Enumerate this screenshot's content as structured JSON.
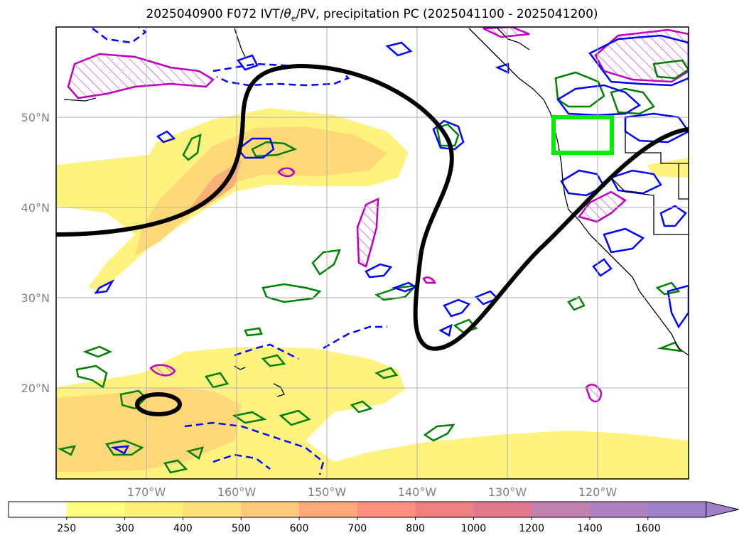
{
  "title": {
    "prefix": "2025040900 F072 IVT/",
    "theta": "θ",
    "theta_sub": "e",
    "suffix": "/PV, precipitation PC (2025041100 - 2025041200)"
  },
  "map": {
    "lat_labels": [
      "50°N",
      "40°N",
      "30°N",
      "20°N"
    ],
    "lon_labels": [
      "170°W",
      "160°W",
      "150°W",
      "140°W",
      "130°W",
      "120°W"
    ],
    "grid": true
  },
  "colorbar": {
    "ticks": [
      "250",
      "300",
      "400",
      "500",
      "600",
      "700",
      "800",
      "1000",
      "1200",
      "1400",
      "1600"
    ],
    "colors": [
      "#ffffff",
      "#ffff80",
      "#fff07a",
      "#ffe07a",
      "#ffc87a",
      "#ffa87a",
      "#ff9080",
      "#f08080",
      "#e07890",
      "#c080b0",
      "#b080c0",
      "#a080c8"
    ],
    "extend": "max"
  },
  "colors": {
    "ivt_low": "#fff380",
    "ivt_mid": "#ffd878",
    "ivt_high": "#f8b078",
    "pv_contour": "#000000",
    "theta_contour_blue": "#0000ff",
    "green_contour": "#008000",
    "magenta_contour": "#c000c0",
    "highlight_box": "#00ee00"
  }
}
